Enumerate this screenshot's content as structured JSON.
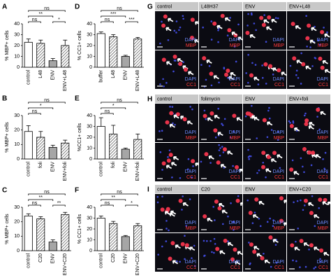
{
  "chart_data": [
    {
      "type": "bar",
      "letter": "A",
      "ylabel": "% MBP+ cells",
      "categories": [
        "control",
        "L48",
        "ENV",
        "ENV+L48"
      ],
      "values": [
        23,
        22,
        6,
        20
      ],
      "errors": [
        3,
        3,
        2,
        5
      ],
      "fills": [
        "white",
        "hatch",
        "#a6a6a6",
        "hatch"
      ],
      "ylim": [
        0,
        40
      ],
      "yticks": [
        0,
        10,
        20,
        30,
        40
      ],
      "significance": [
        {
          "label": "ns",
          "pair": [
            0,
            3
          ]
        },
        {
          "label": "**",
          "pair": [
            0,
            2
          ]
        },
        {
          "label": "ns",
          "pair": [
            0,
            1
          ]
        },
        {
          "label": "*",
          "pair": [
            2,
            3
          ]
        }
      ]
    },
    {
      "type": "bar",
      "letter": "B",
      "ylabel": "% MBP+ cells",
      "categories": [
        "control",
        "foli",
        "ENV",
        "ENV+foli"
      ],
      "values": [
        19,
        15,
        8,
        11
      ],
      "errors": [
        4,
        4,
        1.5,
        2
      ],
      "fills": [
        "white",
        "hatch",
        "#a6a6a6",
        "hatch"
      ],
      "ylim": [
        0,
        30
      ],
      "yticks": [
        0,
        10,
        20,
        30
      ],
      "significance": [
        {
          "label": "ns",
          "pair": [
            0,
            3
          ]
        },
        {
          "label": "*",
          "pair": [
            0,
            2
          ]
        },
        {
          "label": "ns",
          "pair": [
            0,
            1
          ]
        }
      ]
    },
    {
      "type": "bar",
      "letter": "C",
      "ylabel": "% MBP+ cells",
      "categories": [
        "control",
        "C20",
        "ENV",
        "ENV+C20"
      ],
      "values": [
        24,
        22,
        6,
        25
      ],
      "errors": [
        1.5,
        1.5,
        1.5,
        1.5
      ],
      "fills": [
        "white",
        "hatch",
        "#a6a6a6",
        "hatch"
      ],
      "ylim": [
        0,
        30
      ],
      "yticks": [
        0,
        10,
        20,
        30
      ],
      "significance": [
        {
          "label": "ns",
          "pair": [
            0,
            3
          ]
        },
        {
          "label": "**",
          "pair": [
            0,
            2
          ]
        },
        {
          "label": "ns",
          "pair": [
            0,
            1
          ]
        },
        {
          "label": "**",
          "pair": [
            2,
            3
          ]
        }
      ]
    },
    {
      "type": "bar",
      "letter": "D",
      "ylabel": "% CC1+ cells",
      "categories": [
        "buffer",
        "L48",
        "ENV",
        "ENV+L48"
      ],
      "values": [
        31,
        28,
        10,
        26
      ],
      "errors": [
        1.5,
        2,
        1,
        1.5
      ],
      "fills": [
        "white",
        "hatch",
        "#a6a6a6",
        "hatch"
      ],
      "ylim": [
        0,
        40
      ],
      "yticks": [
        0,
        10,
        20,
        30,
        40
      ],
      "significance": [
        {
          "label": "ns",
          "pair": [
            0,
            3
          ]
        },
        {
          "label": "***",
          "pair": [
            0,
            2
          ]
        },
        {
          "label": "ns",
          "pair": [
            0,
            1
          ]
        },
        {
          "label": "***",
          "pair": [
            2,
            3
          ]
        }
      ]
    },
    {
      "type": "bar",
      "letter": "E",
      "ylabel": "%CC1+ cells",
      "categories": [
        "control",
        "foli",
        "ENV",
        "ENV+foli"
      ],
      "values": [
        30,
        23,
        9,
        18
      ],
      "errors": [
        8,
        8,
        1,
        5
      ],
      "fills": [
        "white",
        "hatch",
        "#a6a6a6",
        "hatch"
      ],
      "ylim": [
        0,
        40
      ],
      "yticks": [
        0,
        10,
        20,
        30,
        40
      ],
      "significance": [
        {
          "label": "ns",
          "pair": [
            0,
            3
          ]
        },
        {
          "label": "*",
          "pair": [
            0,
            2
          ]
        },
        {
          "label": "ns",
          "pair": [
            0,
            1
          ]
        }
      ]
    },
    {
      "type": "bar",
      "letter": "F",
      "ylabel": "% CC1+ cells",
      "categories": [
        "control",
        "C20",
        "ENV",
        "ENV+C20"
      ],
      "values": [
        30,
        25,
        13,
        23
      ],
      "errors": [
        2,
        2,
        1,
        2
      ],
      "fills": [
        "white",
        "hatch",
        "#a6a6a6",
        "hatch"
      ],
      "ylim": [
        0,
        40
      ],
      "yticks": [
        0,
        10,
        20,
        30,
        40
      ],
      "significance": [
        {
          "label": "ns",
          "pair": [
            0,
            3
          ]
        },
        {
          "label": "**",
          "pair": [
            0,
            2
          ]
        },
        {
          "label": "ns",
          "pair": [
            0,
            1
          ]
        },
        {
          "label": "*",
          "pair": [
            2,
            3
          ]
        }
      ]
    }
  ],
  "images": [
    {
      "letter": "G",
      "columns": [
        "control",
        "L48H37",
        "ENV",
        "ENV+L48"
      ],
      "row_labels": [
        [
          "DAPI",
          "MBP"
        ],
        [
          "DAPI",
          "CC1"
        ]
      ]
    },
    {
      "letter": "H",
      "columns": [
        "control",
        "folimycin",
        "ENV",
        "ENV+foli"
      ],
      "row_labels": [
        [
          "DAPI",
          "MBP"
        ],
        [
          "DAPI",
          "CC1"
        ]
      ]
    },
    {
      "letter": "I",
      "columns": [
        "control",
        "C20",
        "ENV",
        "ENV+C20"
      ],
      "row_labels": [
        [
          "DAPI",
          "MBP"
        ],
        [
          "DAPI",
          "CC1"
        ]
      ]
    }
  ]
}
